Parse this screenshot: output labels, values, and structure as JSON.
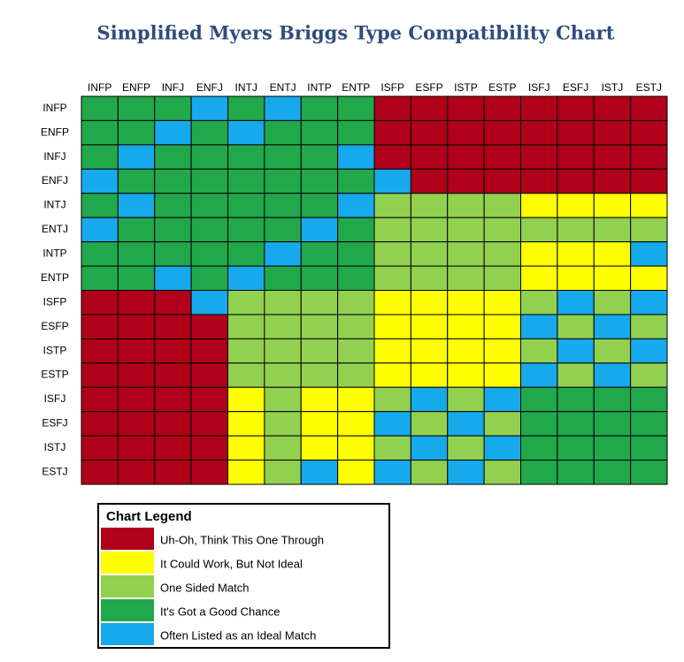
{
  "chart_data": {
    "type": "heatmap",
    "title": "Simplified Myers Briggs Type Compatibility Chart",
    "x": [
      "INFP",
      "ENFP",
      "INFJ",
      "ENFJ",
      "INTJ",
      "ENTJ",
      "INTP",
      "ENTP",
      "ISFP",
      "ESFP",
      "ISTP",
      "ESTP",
      "ISFJ",
      "ESFJ",
      "ISTJ",
      "ESTJ"
    ],
    "y": [
      "INFP",
      "ENFP",
      "INFJ",
      "ENFJ",
      "INTJ",
      "ENTJ",
      "INTP",
      "ENTP",
      "ISFP",
      "ESFP",
      "ISTP",
      "ESTP",
      "ISFJ",
      "ESFJ",
      "ISTJ",
      "ESTJ"
    ],
    "legend_title": "Chart Legend",
    "legend": [
      {
        "name": "Uh-Oh, Think This One Through",
        "color": "#b0001a"
      },
      {
        "name": "It Could Work, But Not Ideal",
        "color": "#ffff00"
      },
      {
        "name": "One Sided Match",
        "color": "#92d050"
      },
      {
        "name": "It's Got a Good Chance",
        "color": "#21a84a"
      },
      {
        "name": "Often Listed as an Ideal Match",
        "color": "#16a9ec"
      }
    ],
    "values": [
      [
        3,
        3,
        3,
        4,
        3,
        4,
        3,
        3,
        0,
        0,
        0,
        0,
        0,
        0,
        0,
        0
      ],
      [
        3,
        3,
        4,
        3,
        4,
        3,
        3,
        3,
        0,
        0,
        0,
        0,
        0,
        0,
        0,
        0
      ],
      [
        3,
        4,
        3,
        3,
        3,
        3,
        3,
        4,
        0,
        0,
        0,
        0,
        0,
        0,
        0,
        0
      ],
      [
        4,
        3,
        3,
        3,
        3,
        3,
        3,
        3,
        4,
        0,
        0,
        0,
        0,
        0,
        0,
        0
      ],
      [
        3,
        4,
        3,
        3,
        3,
        3,
        3,
        4,
        2,
        2,
        2,
        2,
        1,
        1,
        1,
        1
      ],
      [
        4,
        3,
        3,
        3,
        3,
        3,
        4,
        3,
        2,
        2,
        2,
        2,
        2,
        2,
        2,
        2
      ],
      [
        3,
        3,
        3,
        3,
        3,
        4,
        3,
        3,
        2,
        2,
        2,
        2,
        1,
        1,
        1,
        4
      ],
      [
        3,
        3,
        4,
        3,
        4,
        3,
        3,
        3,
        2,
        2,
        2,
        2,
        1,
        1,
        1,
        1
      ],
      [
        0,
        0,
        0,
        4,
        2,
        2,
        2,
        2,
        1,
        1,
        1,
        1,
        2,
        4,
        2,
        4
      ],
      [
        0,
        0,
        0,
        0,
        2,
        2,
        2,
        2,
        1,
        1,
        1,
        1,
        4,
        2,
        4,
        2
      ],
      [
        0,
        0,
        0,
        0,
        2,
        2,
        2,
        2,
        1,
        1,
        1,
        1,
        2,
        4,
        2,
        4
      ],
      [
        0,
        0,
        0,
        0,
        2,
        2,
        2,
        2,
        1,
        1,
        1,
        1,
        4,
        2,
        4,
        2
      ],
      [
        0,
        0,
        0,
        0,
        1,
        2,
        1,
        1,
        2,
        4,
        2,
        4,
        3,
        3,
        3,
        3
      ],
      [
        0,
        0,
        0,
        0,
        1,
        2,
        1,
        1,
        4,
        2,
        4,
        2,
        3,
        3,
        3,
        3
      ],
      [
        0,
        0,
        0,
        0,
        1,
        2,
        1,
        1,
        2,
        4,
        2,
        4,
        3,
        3,
        3,
        3
      ],
      [
        0,
        0,
        0,
        0,
        1,
        2,
        4,
        1,
        4,
        2,
        4,
        2,
        3,
        3,
        3,
        3
      ]
    ]
  }
}
